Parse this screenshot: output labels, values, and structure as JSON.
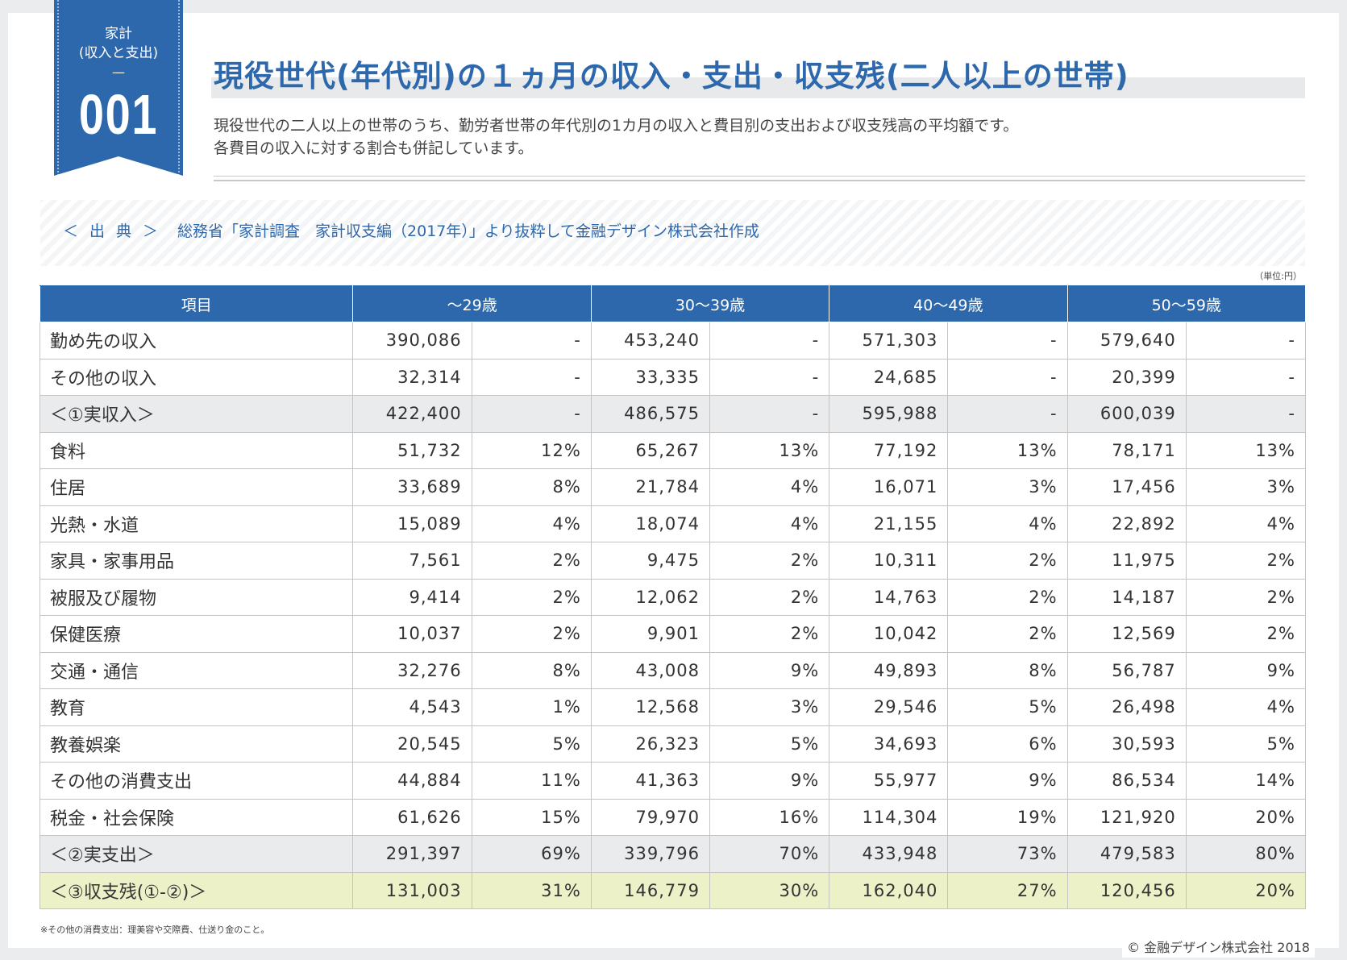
{
  "badge": {
    "category": "家計\n(収入と支出)",
    "dash": "—",
    "number": "001"
  },
  "title": "現役世代(年代別)の１ヵ月の収入・支出・収支残(二人以上の世帯)",
  "description": [
    "現役世代の二人以上の世帯のうち、勤労者世帯の年代別の1カ月の収入と費目別の支出および収支残高の平均額です。",
    "各費目の収入に対する割合も併記しています。"
  ],
  "source": {
    "label": "＜出典＞",
    "text": "総務省「家計調査　家計収支編（2017年）」より抜粋して金融デザイン株式会社作成"
  },
  "unit": "（単位:円）",
  "table": {
    "headers": [
      "項目",
      "～29歳",
      "30～39歳",
      "40～49歳",
      "50～59歳"
    ],
    "rows": [
      {
        "label": "勤め先の収入",
        "style": "",
        "cells": [
          "390,086",
          "-",
          "453,240",
          "-",
          "571,303",
          "-",
          "579,640",
          "-"
        ]
      },
      {
        "label": "その他の収入",
        "style": "",
        "cells": [
          "32,314",
          "-",
          "33,335",
          "-",
          "24,685",
          "-",
          "20,399",
          "-"
        ]
      },
      {
        "label": "＜①実収入＞",
        "style": "gray",
        "cells": [
          "422,400",
          "-",
          "486,575",
          "-",
          "595,988",
          "-",
          "600,039",
          "-"
        ]
      },
      {
        "label": "食料",
        "style": "",
        "cells": [
          "51,732",
          "12%",
          "65,267",
          "13%",
          "77,192",
          "13%",
          "78,171",
          "13%"
        ]
      },
      {
        "label": "住居",
        "style": "",
        "cells": [
          "33,689",
          "8%",
          "21,784",
          "4%",
          "16,071",
          "3%",
          "17,456",
          "3%"
        ]
      },
      {
        "label": "光熱・水道",
        "style": "",
        "cells": [
          "15,089",
          "4%",
          "18,074",
          "4%",
          "21,155",
          "4%",
          "22,892",
          "4%"
        ]
      },
      {
        "label": "家具・家事用品",
        "style": "",
        "cells": [
          "7,561",
          "2%",
          "9,475",
          "2%",
          "10,311",
          "2%",
          "11,975",
          "2%"
        ]
      },
      {
        "label": "被服及び履物",
        "style": "",
        "cells": [
          "9,414",
          "2%",
          "12,062",
          "2%",
          "14,763",
          "2%",
          "14,187",
          "2%"
        ]
      },
      {
        "label": "保健医療",
        "style": "",
        "cells": [
          "10,037",
          "2%",
          "9,901",
          "2%",
          "10,042",
          "2%",
          "12,569",
          "2%"
        ]
      },
      {
        "label": "交通・通信",
        "style": "",
        "cells": [
          "32,276",
          "8%",
          "43,008",
          "9%",
          "49,893",
          "8%",
          "56,787",
          "9%"
        ]
      },
      {
        "label": "教育",
        "style": "",
        "cells": [
          "4,543",
          "1%",
          "12,568",
          "3%",
          "29,546",
          "5%",
          "26,498",
          "4%"
        ]
      },
      {
        "label": "教養娯楽",
        "style": "",
        "cells": [
          "20,545",
          "5%",
          "26,323",
          "5%",
          "34,693",
          "6%",
          "30,593",
          "5%"
        ]
      },
      {
        "label": "その他の消費支出",
        "style": "",
        "cells": [
          "44,884",
          "11%",
          "41,363",
          "9%",
          "55,977",
          "9%",
          "86,534",
          "14%"
        ]
      },
      {
        "label": "税金・社会保険",
        "style": "",
        "cells": [
          "61,626",
          "15%",
          "79,970",
          "16%",
          "114,304",
          "19%",
          "121,920",
          "20%"
        ]
      },
      {
        "label": "＜②実支出＞",
        "style": "gray",
        "cells": [
          "291,397",
          "69%",
          "339,796",
          "70%",
          "433,948",
          "73%",
          "479,583",
          "80%"
        ]
      },
      {
        "label": "＜③収支残(①-②)＞",
        "style": "green",
        "cells": [
          "131,003",
          "31%",
          "146,779",
          "30%",
          "162,040",
          "27%",
          "120,456",
          "20%"
        ]
      }
    ]
  },
  "note": "※その他の消費支出：理美容や交際費、仕送り金のこと。",
  "copyright": "© 金融デザイン株式会社 2018",
  "colors": {
    "accent": "#2d68ad",
    "total_row": "#eaebed",
    "balance_row": "#ecf1c8"
  }
}
